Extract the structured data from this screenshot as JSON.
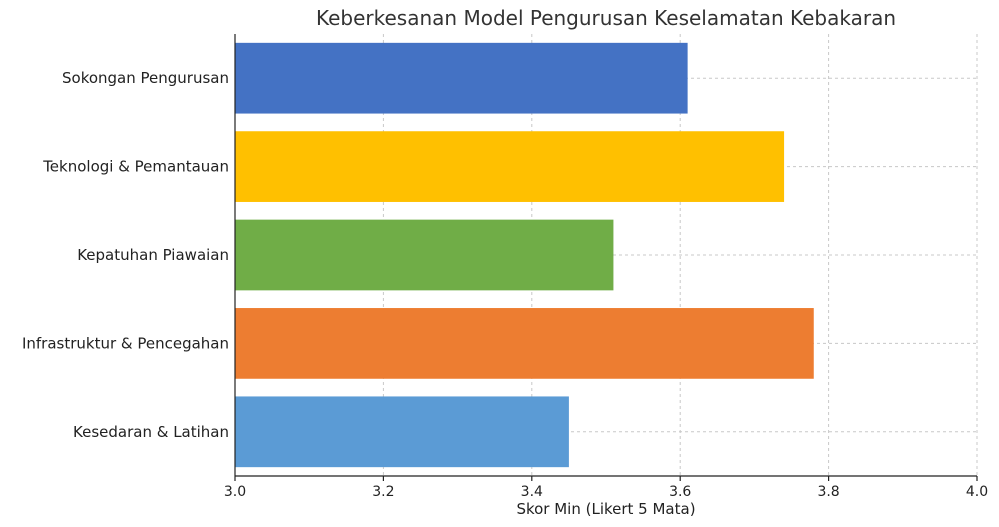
{
  "chart_data": {
    "type": "bar",
    "orientation": "horizontal",
    "title": "Keberkesanan Model Pengurusan Keselamatan Kebakaran",
    "xlabel": "Skor Min (Likert 5 Mata)",
    "ylabel": "",
    "categories": [
      "Sokongan Pengurusan",
      "Teknologi & Pemantauan",
      "Kepatuhan Piawaian",
      "Infrastruktur & Pencegahan",
      "Kesedaran & Latihan"
    ],
    "values": [
      3.61,
      3.74,
      3.51,
      3.78,
      3.45
    ],
    "colors": [
      "#4472c4",
      "#ffc000",
      "#70ad47",
      "#ed7d31",
      "#5b9bd5"
    ],
    "xlim": [
      3.0,
      4.0
    ],
    "xticks": [
      "3.0",
      "3.2",
      "3.4",
      "3.6",
      "3.8",
      "4.0"
    ],
    "grid": true
  }
}
